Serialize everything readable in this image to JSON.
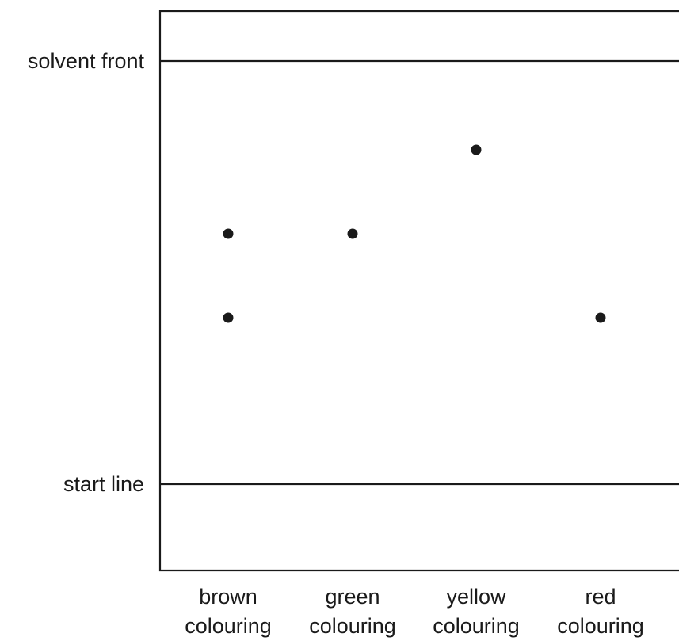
{
  "lines": {
    "solvent_front": "solvent front",
    "start_line": "start line"
  },
  "columns": [
    {
      "name": "brown",
      "sub": "colouring"
    },
    {
      "name": "green",
      "sub": "colouring"
    },
    {
      "name": "yellow",
      "sub": "colouring"
    },
    {
      "name": "red",
      "sub": "colouring"
    }
  ],
  "colors": {
    "ink": "#1a1a1a",
    "background": "#ffffff"
  }
}
